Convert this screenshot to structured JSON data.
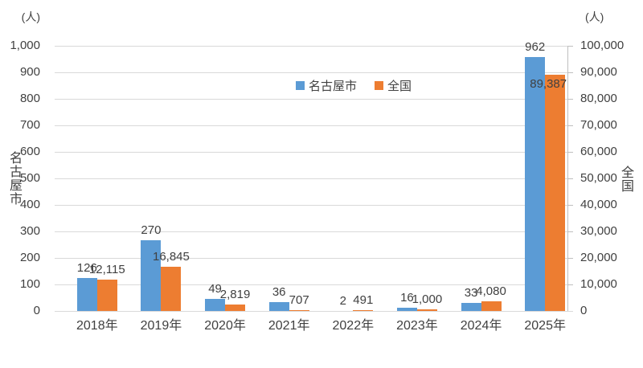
{
  "chart_data": {
    "type": "bar",
    "title": "",
    "categories": [
      "2018年",
      "2019年",
      "2020年",
      "2021年",
      "2022年",
      "2023年",
      "2024年",
      "2025年"
    ],
    "series": [
      {
        "key": "nagoya",
        "name": "名古屋市",
        "axis": "left",
        "color": "#5B9BD5",
        "values": [
          126,
          270,
          49,
          36,
          2,
          16,
          33,
          962
        ],
        "labels": [
          "126",
          "270",
          "49",
          "36",
          "2",
          "16",
          "33",
          "962"
        ]
      },
      {
        "key": "zenkoku",
        "name": "全国",
        "axis": "right",
        "color": "#ED7D31",
        "values": [
          12115,
          16845,
          2819,
          707,
          491,
          1000,
          4080,
          89387
        ],
        "labels": [
          "12,115",
          "16,845",
          "2,819",
          "707",
          "491",
          "1,000",
          "4,080",
          "89,387"
        ]
      }
    ],
    "left_axis": {
      "title": "名古屋市",
      "unit": "(人)",
      "min": 0,
      "max": 1000,
      "step": 100,
      "tick_labels": [
        "0",
        "100",
        "200",
        "300",
        "400",
        "500",
        "600",
        "700",
        "800",
        "900",
        "1,000"
      ]
    },
    "right_axis": {
      "title": "全国",
      "unit": "(人)",
      "min": 0,
      "max": 100000,
      "step": 10000,
      "tick_labels": [
        "0",
        "10,000",
        "20,000",
        "30,000",
        "40,000",
        "50,000",
        "60,000",
        "70,000",
        "80,000",
        "90,000",
        "100,000"
      ]
    },
    "legend_position": "top-center",
    "grid": true,
    "style_colors": {
      "gridline": "#d9d9d9",
      "axis_line": "#bfbfbf",
      "text": "#404040"
    }
  }
}
